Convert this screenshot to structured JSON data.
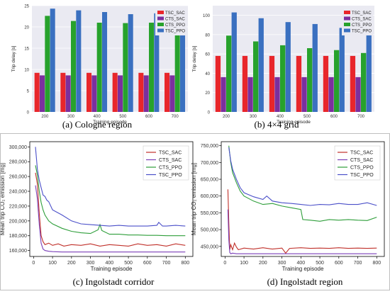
{
  "chart_data": [
    {
      "type": "bar",
      "caption": "(a) Cologne region",
      "xlabel": "Training episode",
      "ylabel": "Trip delay [s]",
      "categories": [
        "200",
        "300",
        "400",
        "500",
        "600",
        "700"
      ],
      "ylim": [
        0,
        25
      ],
      "yticks": [
        0,
        5,
        10,
        15,
        20,
        25
      ],
      "legend_position": "top-right",
      "series": [
        {
          "name": "TSC_SAC",
          "color": "#e8262b",
          "values": [
            9.2,
            9.2,
            9.2,
            9.2,
            9.2,
            9.2
          ]
        },
        {
          "name": "CTS_SAC",
          "color": "#7b2f9e",
          "values": [
            8.6,
            8.6,
            8.6,
            8.6,
            8.6,
            8.6
          ]
        },
        {
          "name": "CTS_PPO",
          "color": "#27a22c",
          "values": [
            22.6,
            21.4,
            21.0,
            20.9,
            21.0,
            19.8
          ]
        },
        {
          "name": "TSC_PPO",
          "color": "#3a70c0",
          "values": [
            24.3,
            23.9,
            23.5,
            23.0,
            23.2,
            22.5
          ]
        }
      ]
    },
    {
      "type": "bar",
      "caption": "(b) 4×4 grid",
      "xlabel": "Training episode",
      "ylabel": "Trip delay [s]",
      "categories": [
        "200",
        "300",
        "400",
        "500",
        "600",
        "700"
      ],
      "ylim": [
        0,
        110
      ],
      "yticks": [
        0,
        20,
        40,
        60,
        80,
        100
      ],
      "legend_position": "top-right",
      "series": [
        {
          "name": "TSC_SAC",
          "color": "#e8262b",
          "values": [
            58,
            58,
            58,
            58,
            58,
            58
          ]
        },
        {
          "name": "CTS_SAC",
          "color": "#7b2f9e",
          "values": [
            36,
            36,
            36,
            36,
            36,
            36
          ]
        },
        {
          "name": "CTS_PPO",
          "color": "#27a22c",
          "values": [
            79,
            73,
            69,
            66,
            64,
            61
          ]
        },
        {
          "name": "TSC_PPO",
          "color": "#3a70c0",
          "values": [
            103,
            97,
            93,
            91,
            87,
            84
          ]
        }
      ]
    },
    {
      "type": "line",
      "caption": "(c) Ingolstadt corridor",
      "xlabel": "Training episode",
      "ylabel": "Mean trip CO₂ emission [mg]",
      "xlim": [
        -20,
        840
      ],
      "ylim": [
        152000,
        307000
      ],
      "xticks": [
        0,
        100,
        200,
        300,
        400,
        500,
        600,
        700,
        800
      ],
      "yticks": [
        160000,
        180000,
        200000,
        220000,
        240000,
        260000,
        280000,
        300000
      ],
      "ytick_labels": [
        "160,000",
        "180,000",
        "200,000",
        "220,000",
        "240,000",
        "260,000",
        "280,000",
        "300,000"
      ],
      "legend_position": "top-right",
      "series": [
        {
          "name": "TSC_SAC",
          "color": "#c0302a",
          "x": [
            10,
            20,
            30,
            40,
            50,
            60,
            80,
            100,
            130,
            160,
            200,
            250,
            300,
            350,
            400,
            450,
            500,
            550,
            600,
            650,
            700,
            750,
            800
          ],
          "y": [
            265000,
            250000,
            210000,
            180000,
            172000,
            168000,
            170000,
            167000,
            169000,
            166000,
            168000,
            167000,
            169000,
            166000,
            168000,
            167000,
            166000,
            169000,
            167000,
            168000,
            166000,
            169000,
            167000
          ]
        },
        {
          "name": "CTS_SAC",
          "color": "#7a3fb8",
          "x": [
            10,
            20,
            30,
            40,
            50,
            60,
            80,
            100,
            150,
            200,
            250,
            300,
            350,
            400,
            450,
            500,
            550,
            600,
            650,
            700,
            750,
            800
          ],
          "y": [
            248000,
            230000,
            195000,
            170000,
            162000,
            160000,
            159000,
            158500,
            158000,
            158000,
            158000,
            158000,
            158000,
            158000,
            158000,
            158000,
            158000,
            158000,
            158000,
            158000,
            158000,
            158000
          ]
        },
        {
          "name": "CTS_PPO",
          "color": "#2e9e3a",
          "x": [
            10,
            20,
            30,
            40,
            50,
            60,
            80,
            100,
            150,
            200,
            250,
            300,
            340,
            350,
            360,
            400,
            450,
            500,
            550,
            600,
            650,
            700,
            750,
            800
          ],
          "y": [
            275000,
            262000,
            240000,
            225000,
            215000,
            208000,
            200000,
            196000,
            190000,
            186000,
            184000,
            183000,
            188000,
            195000,
            187000,
            182000,
            182000,
            181000,
            181000,
            180500,
            180500,
            180000,
            180000,
            180000
          ]
        },
        {
          "name": "TSC_PPO",
          "color": "#4a4fc9",
          "x": [
            10,
            20,
            30,
            40,
            50,
            60,
            70,
            80,
            100,
            150,
            200,
            250,
            300,
            350,
            400,
            450,
            500,
            550,
            600,
            650,
            660,
            680,
            700,
            750,
            800
          ],
          "y": [
            300000,
            270000,
            255000,
            245000,
            235000,
            233000,
            228000,
            226000,
            215000,
            208000,
            200000,
            196000,
            195000,
            194000,
            193000,
            194000,
            193000,
            193000,
            193000,
            194000,
            198000,
            193000,
            193000,
            194000,
            193000
          ]
        }
      ]
    },
    {
      "type": "line",
      "caption": "(d) Ingolstadt region",
      "xlabel": "Training episode",
      "ylabel": "Mean trip CO₂ emission [mg]",
      "xlim": [
        -20,
        840
      ],
      "ylim": [
        420000,
        762000
      ],
      "xticks": [
        0,
        100,
        200,
        300,
        400,
        500,
        600,
        700,
        800
      ],
      "yticks": [
        450000,
        500000,
        550000,
        600000,
        650000,
        700000,
        750000
      ],
      "ytick_labels": [
        "450,000",
        "500,000",
        "550,000",
        "600,000",
        "650,000",
        "700,000",
        "750,000"
      ],
      "legend_position": "top-right",
      "series": [
        {
          "name": "TSC_SAC",
          "color": "#c0302a",
          "x": [
            15,
            20,
            25,
            30,
            40,
            50,
            60,
            70,
            100,
            150,
            200,
            250,
            300,
            320,
            340,
            400,
            450,
            500,
            550,
            600,
            650,
            700,
            750,
            800
          ],
          "y": [
            620000,
            520000,
            440000,
            455000,
            440000,
            460000,
            448000,
            440000,
            445000,
            442000,
            446000,
            442000,
            445000,
            430000,
            444000,
            446000,
            444000,
            445000,
            444000,
            446000,
            444000,
            445000,
            444000,
            445000
          ]
        },
        {
          "name": "CTS_SAC",
          "color": "#7a3fb8",
          "x": [
            15,
            20,
            25,
            30,
            40,
            60,
            100,
            200,
            300,
            400,
            500,
            600,
            700,
            800
          ],
          "y": [
            560000,
            470000,
            432000,
            428000,
            430000,
            428000,
            428000,
            428000,
            428000,
            428000,
            428000,
            428000,
            428000,
            428000
          ]
        },
        {
          "name": "CTS_PPO",
          "color": "#2e9e3a",
          "x": [
            20,
            30,
            40,
            60,
            80,
            100,
            150,
            200,
            250,
            300,
            350,
            400,
            410,
            450,
            500,
            550,
            600,
            650,
            700,
            750,
            800
          ],
          "y": [
            750000,
            700000,
            670000,
            640000,
            615000,
            600000,
            585000,
            575000,
            578000,
            570000,
            565000,
            560000,
            530000,
            528000,
            525000,
            530000,
            528000,
            530000,
            528000,
            527000,
            537000
          ]
        },
        {
          "name": "TSC_PPO",
          "color": "#4a4fc9",
          "x": [
            20,
            30,
            40,
            60,
            80,
            100,
            150,
            200,
            220,
            250,
            300,
            350,
            400,
            450,
            500,
            550,
            600,
            650,
            700,
            750,
            800
          ],
          "y": [
            745000,
            705000,
            680000,
            650000,
            625000,
            610000,
            598000,
            590000,
            600000,
            585000,
            580000,
            578000,
            575000,
            572000,
            575000,
            574000,
            578000,
            575000,
            575000,
            580000,
            572000
          ]
        }
      ]
    }
  ]
}
